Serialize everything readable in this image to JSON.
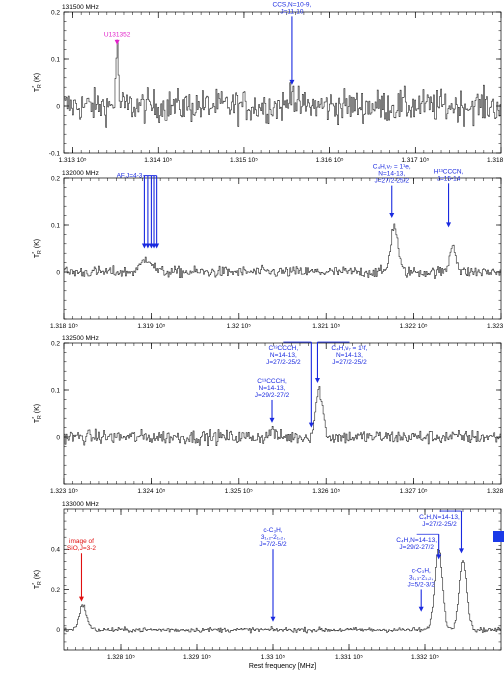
{
  "colors": {
    "spectrum": "#222222",
    "axes": "#000000",
    "blue_annotation": "#1a2ae0",
    "magenta_annotation": "#e020c8",
    "red_annotation": "#e01010",
    "legend_marker": "#1a3ae8"
  },
  "chart_data": [
    {
      "type": "line",
      "corner_label": "131500 MHz",
      "y_axis_label": "T*R (K)",
      "xlim": [
        1312.9,
        1318.0
      ],
      "ylim": [
        -0.1,
        0.2
      ],
      "x_ticks": [
        {
          "value": 1313.0,
          "label": "1.313 10⁵"
        },
        {
          "value": 1314.0,
          "label": "1.314 10⁵"
        },
        {
          "value": 1315.0,
          "label": "1.315 10⁵"
        },
        {
          "value": 1316.0,
          "label": "1.316 10⁵"
        },
        {
          "value": 1317.0,
          "label": "1.317 10⁵"
        },
        {
          "value": 1318.0,
          "label": "1.318 10⁵"
        }
      ],
      "y_ticks": [
        {
          "value": 0.2,
          "label": "0.2"
        },
        {
          "value": 0.1,
          "label": "0.1"
        },
        {
          "value": 0,
          "label": "0"
        },
        {
          "value": -0.1,
          "label": "-0.1"
        }
      ],
      "noise": 0.035,
      "features": [
        {
          "center": 1313.52,
          "width": 0.015,
          "height": 0.12
        },
        {
          "center": 1315.56,
          "width": 0.02,
          "height": 0.05
        }
      ],
      "annotations": [
        {
          "lines": [
            "U131352"
          ],
          "color": "magenta",
          "x": 1313.52,
          "text_y": 0.148,
          "tip_y": 0.13
        },
        {
          "lines": [
            "CCS,N=10-9,",
            "J=11-10"
          ],
          "color": "blue",
          "x": 1315.56,
          "text_y": 0.212,
          "tip_y": 0.045
        }
      ]
    },
    {
      "type": "line",
      "corner_label": "132000 MHz",
      "y_axis_label": "T*R (K)",
      "xlim": [
        1318.0,
        1323.0
      ],
      "ylim": [
        -0.1,
        0.2
      ],
      "x_ticks": [
        {
          "value": 1318.0,
          "label": "1.318 10⁵"
        },
        {
          "value": 1319.0,
          "label": "1.319 10⁵"
        },
        {
          "value": 1320.0,
          "label": "1.32 10⁵"
        },
        {
          "value": 1321.0,
          "label": "1.321 10⁵"
        },
        {
          "value": 1322.0,
          "label": "1.322 10⁵"
        },
        {
          "value": 1323.0,
          "label": "1.323 10⁵"
        }
      ],
      "y_ticks": [
        {
          "value": 0.2,
          "label": "0.2"
        },
        {
          "value": 0.1,
          "label": "0.1"
        },
        {
          "value": 0,
          "label": "0"
        }
      ],
      "noise": 0.012,
      "features": [
        {
          "center": 1318.95,
          "width": 0.06,
          "height": 0.03
        },
        {
          "center": 1321.78,
          "width": 0.04,
          "height": 0.1
        },
        {
          "center": 1322.45,
          "width": 0.035,
          "height": 0.06
        }
      ],
      "annotations": [
        {
          "lines": [
            "C₄H,ν₇ = 1¹e,",
            "N=14-13,",
            "J=27/2-25/2"
          ],
          "color": "blue",
          "x": 1321.75,
          "text_y": 0.22,
          "tip_y": 0.115
        },
        {
          "lines": [
            "H¹³CCCN,",
            "J=15-14"
          ],
          "color": "blue",
          "x": 1322.4,
          "text_y": 0.21,
          "tip_y": 0.095
        }
      ],
      "bundle": {
        "lines": [
          "AF,J=4-3"
        ],
        "color": "blue",
        "xs": [
          1318.92,
          1318.96,
          1319.0,
          1319.03,
          1319.06
        ],
        "text_y": 0.205,
        "tip_y": 0.05
      }
    },
    {
      "type": "line",
      "corner_label": "132500 MHz",
      "y_axis_label": "T*R (K)",
      "xlim": [
        1323.0,
        1328.0
      ],
      "ylim": [
        -0.1,
        0.2
      ],
      "x_ticks": [
        {
          "value": 1323.0,
          "label": "1.323 10⁵"
        },
        {
          "value": 1324.0,
          "label": "1.324 10⁵"
        },
        {
          "value": 1325.0,
          "label": "1.325 10⁵"
        },
        {
          "value": 1326.0,
          "label": "1.326 10⁵"
        },
        {
          "value": 1327.0,
          "label": "1.327 10⁵"
        },
        {
          "value": 1328.0,
          "label": "1.328 10⁵"
        }
      ],
      "y_ticks": [
        {
          "value": 0.2,
          "label": "0.2"
        },
        {
          "value": 0.1,
          "label": "0.1"
        },
        {
          "value": 0,
          "label": "0"
        }
      ],
      "noise": 0.015,
      "features": [
        {
          "center": 1325.92,
          "width": 0.04,
          "height": 0.1
        },
        {
          "center": 1325.38,
          "width": 0.02,
          "height": 0.02
        }
      ],
      "annotations": [
        {
          "lines": [
            "C¹³CCCH,",
            "N=14-13,",
            "J=27/2-25/2"
          ],
          "color": "blue",
          "x": 1325.83,
          "text_y": 0.185,
          "tip_y": 0.02,
          "elbow": true
        },
        {
          "lines": [
            "C₄H,ν₇ = 1¹f,",
            "N=14-13,",
            "J=27/2-25/2"
          ],
          "color": "blue",
          "x": 1325.9,
          "text_y": 0.185,
          "tip_y": 0.115,
          "elbow": true
        },
        {
          "lines": [
            "C¹³CCCH,",
            "N=14-13,",
            "J=29/2-27/2"
          ],
          "color": "blue",
          "x": 1325.38,
          "text_y": 0.115,
          "tip_y": 0.03
        }
      ]
    },
    {
      "type": "line",
      "corner_label": "133000 MHz",
      "y_axis_label": "T*R (K)",
      "x_axis_label": "Rest frequency [MHz]",
      "xlim": [
        1327.25,
        1333.0
      ],
      "ylim": [
        -0.1,
        0.6
      ],
      "x_ticks": [
        {
          "value": 1328.0,
          "label": "1.328 10⁵"
        },
        {
          "value": 1329.0,
          "label": "1.329 10⁵"
        },
        {
          "value": 1330.0,
          "label": "1.33 10⁵"
        },
        {
          "value": 1331.0,
          "label": "1.331 10⁵"
        },
        {
          "value": 1332.0,
          "label": "1.332 10⁵"
        }
      ],
      "y_ticks": [
        {
          "value": 0.4,
          "label": "0.4"
        },
        {
          "value": 0.2,
          "label": "0.2"
        },
        {
          "value": 0,
          "label": "0"
        }
      ],
      "noise": 0.012,
      "features": [
        {
          "center": 1327.5,
          "width": 0.05,
          "height": 0.12
        },
        {
          "center": 1332.18,
          "width": 0.05,
          "height": 0.4
        },
        {
          "center": 1332.5,
          "width": 0.05,
          "height": 0.35
        }
      ],
      "annotations": [
        {
          "lines": [
            "image of",
            "SiO,J=3-2"
          ],
          "color": "red",
          "x": 1327.48,
          "text_y": 0.43,
          "tip_y": 0.14
        },
        {
          "lines": [
            "c-C₃H,",
            "3₁,₂-2₁,₂,",
            "J=7/2-5/2"
          ],
          "color": "blue",
          "x": 1330.0,
          "text_y": 0.485,
          "tip_y": 0.04
        },
        {
          "lines": [
            "C₄H,N=14-13,",
            "J=27/2-25/2"
          ],
          "color": "blue",
          "x": 1332.48,
          "text_y": 0.55,
          "tip_y": 0.38,
          "elbow": true
        },
        {
          "lines": [
            "C₄H,N=14-13,",
            "J=29/2-27/2"
          ],
          "color": "blue",
          "x": 1332.18,
          "text_y": 0.435,
          "tip_y": 0.35,
          "elbow": true
        },
        {
          "lines": [
            "c-C₃H,",
            "3₁,₃-2₁,₂,",
            "J=5/2-3/2"
          ],
          "color": "blue",
          "x": 1331.95,
          "text_y": 0.285,
          "tip_y": 0.09
        }
      ]
    }
  ]
}
